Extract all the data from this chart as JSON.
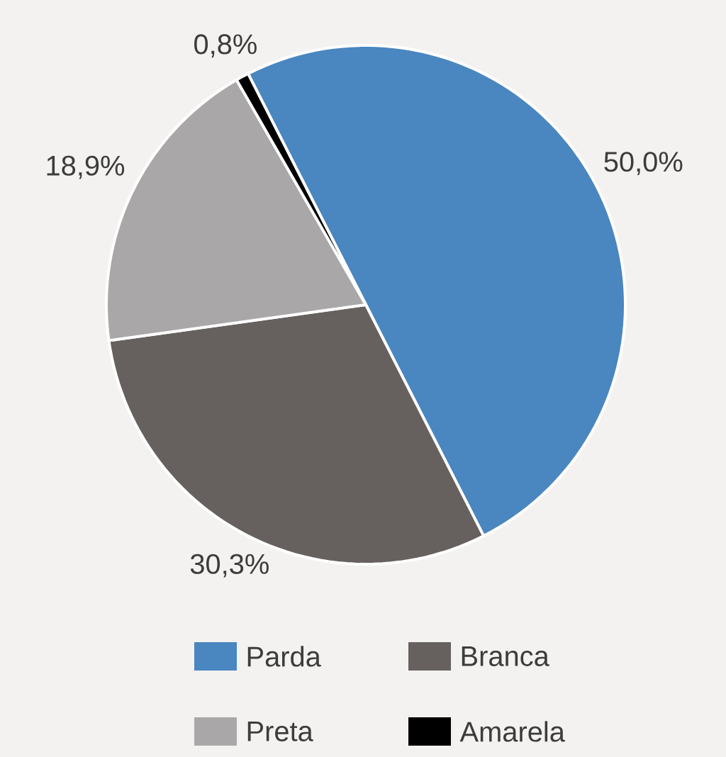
{
  "chart_data": {
    "type": "pie",
    "categories": [
      "Parda",
      "Branca",
      "Preta",
      "Amarela"
    ],
    "values": [
      50.0,
      30.3,
      18.9,
      0.8
    ],
    "colors": [
      "#4a86c0",
      "#66615f",
      "#a9a7a7",
      "#000000"
    ],
    "value_labels": [
      "50,0%",
      "30,3%",
      "18,9%",
      "0,8%"
    ],
    "legend": "bottom"
  }
}
